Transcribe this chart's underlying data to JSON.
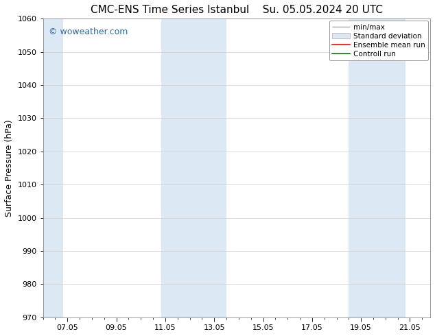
{
  "title_left": "CMC-ENS Time Series Istanbul",
  "title_right": "Su. 05.05.2024 20 UTC",
  "ylabel": "Surface Pressure (hPa)",
  "ylim": [
    970,
    1060
  ],
  "yticks": [
    970,
    980,
    990,
    1000,
    1010,
    1020,
    1030,
    1040,
    1050,
    1060
  ],
  "xlim_start": 6.0,
  "xlim_end": 21.83,
  "xtick_positions": [
    7,
    9,
    11,
    13,
    15,
    17,
    19,
    21
  ],
  "xtick_labels": [
    "07.05",
    "09.05",
    "11.05",
    "13.05",
    "15.05",
    "17.05",
    "19.05",
    "21.05"
  ],
  "shaded_bands": [
    {
      "x_start": 6.0,
      "x_end": 6.83
    },
    {
      "x_start": 10.83,
      "x_end": 13.5
    },
    {
      "x_start": 18.5,
      "x_end": 20.83
    }
  ],
  "band_color": "#dce9f5",
  "watermark": "© woweather.com",
  "watermark_color": "#1a6bcc",
  "legend_entries": [
    {
      "label": "min/max",
      "color": "#aaaaaa",
      "linewidth": 1.0
    },
    {
      "label": "Standard deviation",
      "color": "#dce9f5",
      "linewidth": 6
    },
    {
      "label": "Ensemble mean run",
      "color": "#ff0000",
      "linewidth": 1.2
    },
    {
      "label": "Controll run",
      "color": "#008000",
      "linewidth": 1.2
    }
  ],
  "background_color": "#ffffff",
  "grid_color": "#cccccc",
  "title_fontsize": 11,
  "axis_label_fontsize": 9,
  "tick_fontsize": 8,
  "watermark_fontsize": 9,
  "legend_fontsize": 7.5
}
